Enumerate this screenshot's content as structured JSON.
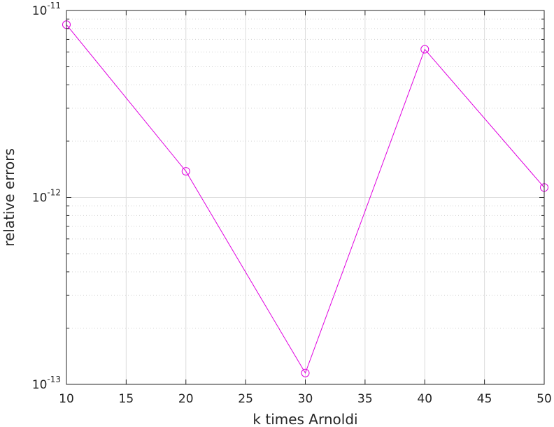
{
  "chart_data": {
    "type": "line",
    "xlabel": "k times Arnoldi",
    "ylabel": "relative errors",
    "xlim": [
      10,
      50
    ],
    "ylim": [
      1e-13,
      1e-11
    ],
    "yscale": "log",
    "grid": true,
    "x_ticks": [
      {
        "value": 10,
        "label": "10"
      },
      {
        "value": 15,
        "label": "15"
      },
      {
        "value": 20,
        "label": "20"
      },
      {
        "value": 25,
        "label": "25"
      },
      {
        "value": 30,
        "label": "30"
      },
      {
        "value": 35,
        "label": "35"
      },
      {
        "value": 40,
        "label": "40"
      },
      {
        "value": 45,
        "label": "45"
      },
      {
        "value": 50,
        "label": "50"
      }
    ],
    "y_ticks": [
      {
        "value": 1e-13,
        "base": "10",
        "exp": "-13"
      },
      {
        "value": 1e-12,
        "base": "10",
        "exp": "-12"
      },
      {
        "value": 1e-11,
        "base": "10",
        "exp": "-11"
      }
    ],
    "series": [
      {
        "color": "#e000e0",
        "marker": "circle",
        "x": [
          10,
          20,
          30,
          40,
          50
        ],
        "y": [
          8.4e-12,
          1.38e-12,
          1.15e-13,
          6.2e-12,
          1.13e-12
        ]
      }
    ]
  }
}
